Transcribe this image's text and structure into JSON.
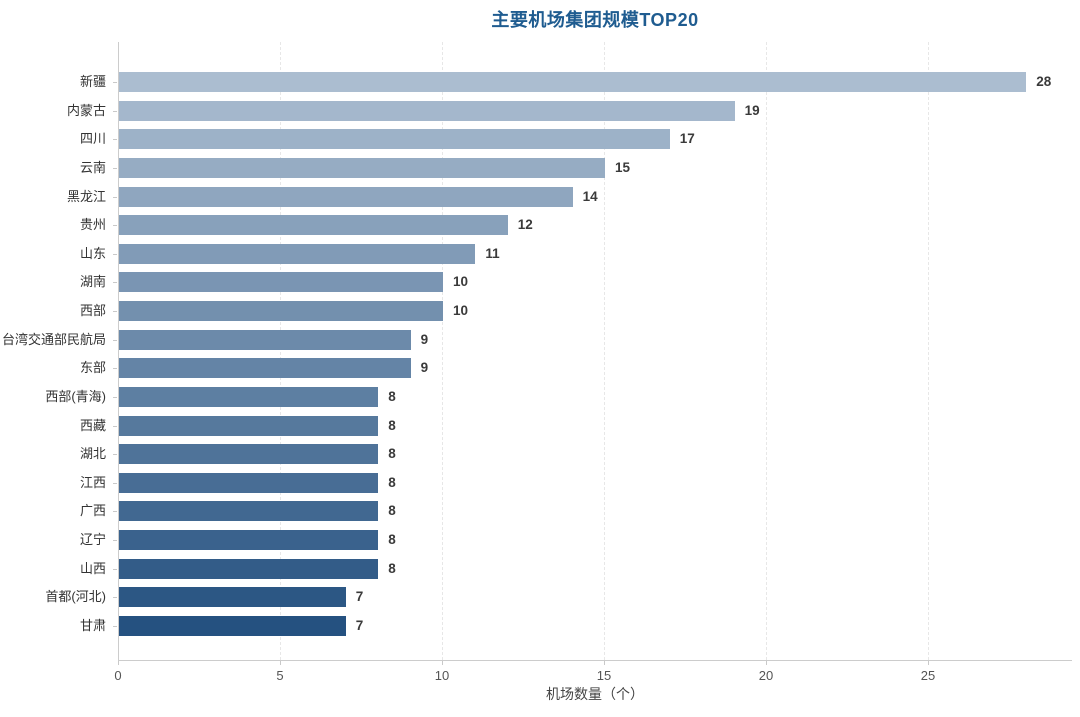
{
  "title": {
    "text": "主要机场集团规模TOP20",
    "color": "#1f5c90"
  },
  "chart_data": {
    "type": "bar",
    "orientation": "horizontal",
    "categories": [
      "新疆",
      "内蒙古",
      "四川",
      "云南",
      "黑龙江",
      "贵州",
      "山东",
      "湖南",
      "西部",
      "台湾交通部民航局",
      "东部",
      "西部(青海)",
      "西藏",
      "湖北",
      "江西",
      "广西",
      "辽宁",
      "山西",
      "首都(河北)",
      "甘肃"
    ],
    "values": [
      28,
      19,
      17,
      15,
      14,
      12,
      11,
      10,
      10,
      9,
      9,
      8,
      8,
      8,
      8,
      8,
      8,
      8,
      7,
      7
    ],
    "value_labels": [
      "28",
      "19",
      "17",
      "15",
      "14",
      "12",
      "11",
      "10",
      "10",
      "9",
      "9",
      "8",
      "8",
      "8",
      "8",
      "8",
      "8",
      "8",
      "7",
      "7"
    ],
    "title": "主要机场集团规模TOP20",
    "xlabel": "机场数量（个）",
    "ylabel": "",
    "xlim": [
      0,
      29.4
    ],
    "xticks": [
      "0",
      "5",
      "10",
      "15",
      "20",
      "25"
    ],
    "xtick_values": [
      0,
      5,
      10,
      15,
      20,
      25
    ],
    "grid": "vertical-dashed",
    "legend": "none",
    "bar_colors": [
      "#abbdd0",
      "#a4b7cc",
      "#9db2c8",
      "#96acc3",
      "#8fa6bf",
      "#88a1bb",
      "#819bb7",
      "#7a95b3",
      "#7390ae",
      "#6c8aaa",
      "#6484a6",
      "#5d7fa2",
      "#56799d",
      "#4f7399",
      "#486d95",
      "#416891",
      "#3a628d",
      "#335c88",
      "#2c5784",
      "#255180"
    ],
    "colors": {
      "gradient_start": "#abbdd0",
      "gradient_end": "#255180",
      "axis_line": "#cccccc",
      "gridline": "#e7e7e7",
      "tick_label": "#555555",
      "category_label": "#333333",
      "value_label": "#3a3a3a",
      "title": "#1f5c90",
      "xlabel": "#444444"
    }
  }
}
